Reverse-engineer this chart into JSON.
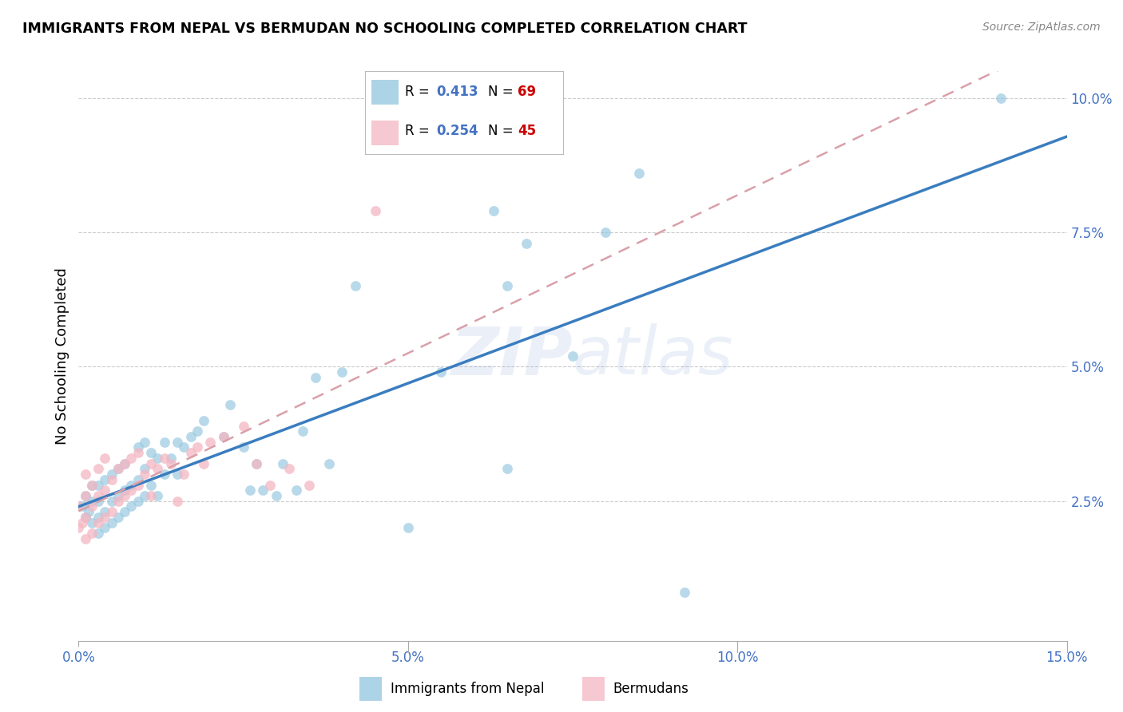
{
  "title": "IMMIGRANTS FROM NEPAL VS BERMUDAN NO SCHOOLING COMPLETED CORRELATION CHART",
  "source": "Source: ZipAtlas.com",
  "ylabel_label": "No Schooling Completed",
  "watermark": "ZIPatlas",
  "legend_nepal_r": "0.413",
  "legend_nepal_n": "69",
  "legend_bermuda_r": "0.254",
  "legend_bermuda_n": "45",
  "nepal_color": "#92c5de",
  "bermuda_color": "#f4b6c2",
  "nepal_line_color": "#3a7dbf",
  "bermuda_line_color": "#d9a0aa",
  "tick_color": "#4472c4",
  "rn_color": "#4472c4",
  "n_color": "#cc0000",
  "grid_color": "#cccccc",
  "background": "#ffffff",
  "xlim": [
    0.0,
    0.15
  ],
  "ylim": [
    -0.001,
    0.105
  ],
  "x_ticks": [
    0.0,
    0.05,
    0.1,
    0.15
  ],
  "y_ticks": [
    0.025,
    0.05,
    0.075,
    0.1
  ],
  "nepal_x": [
    0.0005,
    0.001,
    0.001,
    0.0015,
    0.002,
    0.002,
    0.002,
    0.003,
    0.003,
    0.003,
    0.003,
    0.004,
    0.004,
    0.004,
    0.005,
    0.005,
    0.005,
    0.006,
    0.006,
    0.006,
    0.007,
    0.007,
    0.007,
    0.008,
    0.008,
    0.009,
    0.009,
    0.009,
    0.01,
    0.01,
    0.01,
    0.011,
    0.011,
    0.012,
    0.012,
    0.013,
    0.013,
    0.014,
    0.015,
    0.015,
    0.016,
    0.017,
    0.018,
    0.019,
    0.022,
    0.023,
    0.025,
    0.026,
    0.027,
    0.028,
    0.03,
    0.031,
    0.033,
    0.034,
    0.036,
    0.038,
    0.04,
    0.042,
    0.05,
    0.055,
    0.063,
    0.065,
    0.065,
    0.068,
    0.075,
    0.08,
    0.085,
    0.092,
    0.14
  ],
  "nepal_y": [
    0.024,
    0.022,
    0.026,
    0.023,
    0.021,
    0.025,
    0.028,
    0.019,
    0.022,
    0.025,
    0.028,
    0.02,
    0.023,
    0.029,
    0.021,
    0.025,
    0.03,
    0.022,
    0.026,
    0.031,
    0.023,
    0.027,
    0.032,
    0.024,
    0.028,
    0.025,
    0.029,
    0.035,
    0.026,
    0.031,
    0.036,
    0.028,
    0.034,
    0.026,
    0.033,
    0.03,
    0.036,
    0.033,
    0.03,
    0.036,
    0.035,
    0.037,
    0.038,
    0.04,
    0.037,
    0.043,
    0.035,
    0.027,
    0.032,
    0.027,
    0.026,
    0.032,
    0.027,
    0.038,
    0.048,
    0.032,
    0.049,
    0.065,
    0.02,
    0.049,
    0.079,
    0.031,
    0.065,
    0.073,
    0.052,
    0.075,
    0.086,
    0.008,
    0.1
  ],
  "bermuda_x": [
    0.0,
    0.0,
    0.0005,
    0.001,
    0.001,
    0.001,
    0.001,
    0.002,
    0.002,
    0.002,
    0.003,
    0.003,
    0.003,
    0.004,
    0.004,
    0.004,
    0.005,
    0.005,
    0.006,
    0.006,
    0.007,
    0.007,
    0.008,
    0.008,
    0.009,
    0.009,
    0.01,
    0.011,
    0.011,
    0.012,
    0.013,
    0.014,
    0.015,
    0.016,
    0.017,
    0.018,
    0.019,
    0.02,
    0.022,
    0.025,
    0.027,
    0.029,
    0.032,
    0.035,
    0.045
  ],
  "bermuda_y": [
    0.02,
    0.024,
    0.021,
    0.018,
    0.022,
    0.026,
    0.03,
    0.019,
    0.024,
    0.028,
    0.021,
    0.026,
    0.031,
    0.022,
    0.027,
    0.033,
    0.023,
    0.029,
    0.025,
    0.031,
    0.026,
    0.032,
    0.027,
    0.033,
    0.028,
    0.034,
    0.03,
    0.026,
    0.032,
    0.031,
    0.033,
    0.032,
    0.025,
    0.03,
    0.034,
    0.035,
    0.032,
    0.036,
    0.037,
    0.039,
    0.032,
    0.028,
    0.031,
    0.028,
    0.079
  ]
}
